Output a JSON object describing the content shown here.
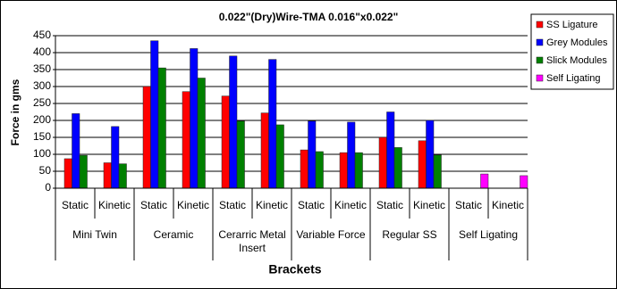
{
  "chart_data": {
    "type": "bar",
    "title": "0.022\"(Dry)Wire-TMA 0.016\"x0.022\"",
    "y_label": "Force in gms",
    "x_label": "Brackets",
    "categories": [
      "Static",
      "Kinetic",
      "Static",
      "Kinetic",
      "Static",
      "Kinetic",
      "Static",
      "Kinetic",
      "Static",
      "Kinetic",
      "Static",
      "Kinetic"
    ],
    "groups": [
      "Mini Twin",
      "Ceramic",
      "Cerarric Metal Insert",
      "Variable Force",
      "Regular SS",
      "Self Ligating"
    ],
    "series": [
      {
        "name": "SS Ligature",
        "color": "#ff0000",
        "values": [
          87,
          75,
          300,
          285,
          272,
          222,
          113,
          105,
          150,
          140,
          null,
          null
        ]
      },
      {
        "name": "Grey Modules",
        "color": "#0000ff",
        "values": [
          220,
          182,
          435,
          412,
          390,
          380,
          198,
          195,
          225,
          200,
          null,
          null
        ]
      },
      {
        "name": "Slick Modules",
        "color": "#008000",
        "values": [
          97,
          72,
          355,
          325,
          198,
          187,
          108,
          105,
          120,
          98,
          null,
          null
        ]
      },
      {
        "name": "Self Ligating",
        "color": "#ff00ff",
        "values": [
          null,
          null,
          null,
          null,
          null,
          null,
          null,
          null,
          null,
          null,
          42,
          37
        ]
      }
    ],
    "ylim": [
      0,
      450
    ],
    "yticks": [
      0,
      50,
      100,
      150,
      200,
      250,
      300,
      350,
      400,
      450
    ],
    "grid": true,
    "legend": "right"
  }
}
